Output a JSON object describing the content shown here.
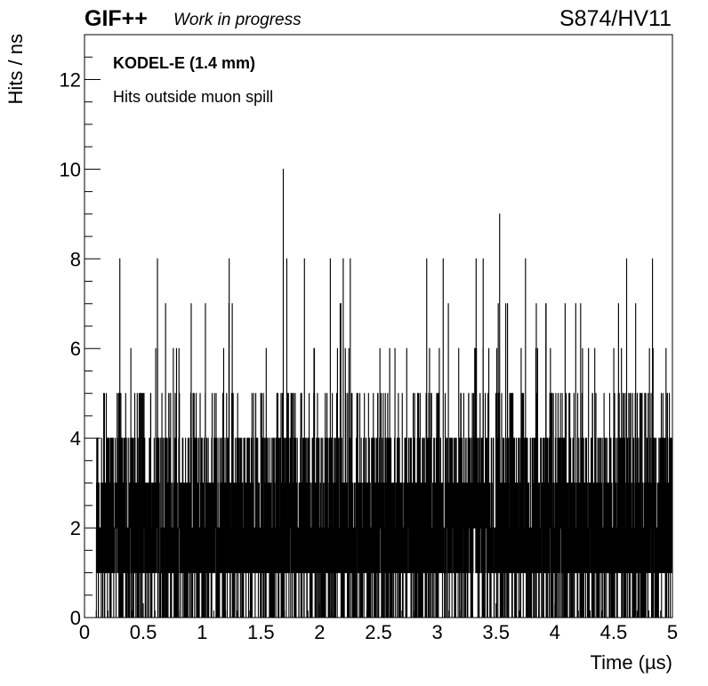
{
  "header": {
    "experiment": "GIF++",
    "status": "Work in progress",
    "run": "S874/HV11"
  },
  "chart_data": {
    "type": "bar",
    "style": "histogram",
    "xlabel": "Time (µs)",
    "ylabel": "Hits / ns",
    "xlim": [
      0,
      5
    ],
    "ylim": [
      0,
      13
    ],
    "x_ticks": [
      "0",
      "0.5",
      "1",
      "1.5",
      "2",
      "2.5",
      "3",
      "3.5",
      "4",
      "4.5",
      "5"
    ],
    "y_ticks": [
      "0",
      "2",
      "4",
      "6",
      "8",
      "10",
      "12"
    ],
    "annotations": [
      "KODEL-E (1.4 mm)",
      "Hits outside muon spill"
    ],
    "bin_width_ns": 1,
    "data_x_range": [
      0.1,
      5
    ],
    "max_value": 10,
    "max_value_x": 1.69,
    "series": [
      {
        "values_summary": "bins from 0.1 to 5 µs; typical values 1–4 hits/ns, frequent 0, occasional 5–8",
        "peaks": [
          {
            "x": 0.3,
            "y": 8
          },
          {
            "x": 0.62,
            "y": 8
          },
          {
            "x": 1.23,
            "y": 8
          },
          {
            "x": 1.69,
            "y": 10
          },
          {
            "x": 1.72,
            "y": 8
          },
          {
            "x": 1.87,
            "y": 8
          },
          {
            "x": 2.09,
            "y": 8
          },
          {
            "x": 2.2,
            "y": 8
          },
          {
            "x": 2.26,
            "y": 8
          },
          {
            "x": 2.91,
            "y": 8
          },
          {
            "x": 3.05,
            "y": 8
          },
          {
            "x": 3.33,
            "y": 8
          },
          {
            "x": 3.39,
            "y": 8
          },
          {
            "x": 3.53,
            "y": 9
          },
          {
            "x": 3.75,
            "y": 8
          },
          {
            "x": 4.61,
            "y": 8
          },
          {
            "x": 4.83,
            "y": 8
          }
        ]
      }
    ]
  }
}
